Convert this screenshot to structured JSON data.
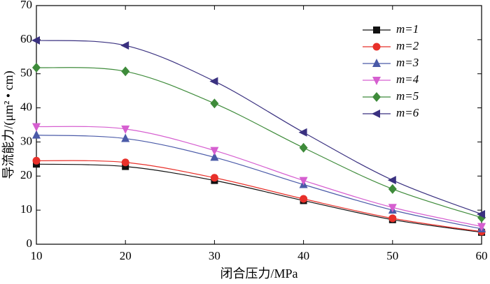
{
  "chart_data": {
    "type": "line",
    "x_label": "闭合压力/MPa",
    "y_label": "导流能力/(μm² • cm)",
    "x": [
      10,
      20,
      30,
      40,
      50,
      60
    ],
    "xlim": [
      10,
      60
    ],
    "xticks": [
      10,
      20,
      30,
      40,
      50,
      60
    ],
    "ylim": [
      0,
      70
    ],
    "yticks": [
      0,
      10,
      20,
      30,
      40,
      50,
      60,
      70
    ],
    "grid": false,
    "legend": "upper right",
    "smooth": true,
    "series": [
      {
        "name": "m=1",
        "color": "#111111",
        "marker": "square",
        "values": [
          23.5,
          22.8,
          18.7,
          12.8,
          7.2,
          3.5
        ]
      },
      {
        "name": "m=2",
        "color": "#e8302a",
        "marker": "circle",
        "values": [
          24.5,
          24.0,
          19.5,
          13.3,
          7.6,
          3.7
        ]
      },
      {
        "name": "m=3",
        "color": "#4a5aa8",
        "marker": "triangle-up",
        "values": [
          32.0,
          31.0,
          25.5,
          17.5,
          10.0,
          4.5
        ]
      },
      {
        "name": "m=4",
        "color": "#d65fd0",
        "marker": "triangle-down",
        "values": [
          34.5,
          33.8,
          27.5,
          18.7,
          10.8,
          5.2
        ]
      },
      {
        "name": "m=5",
        "color": "#3e8b3a",
        "marker": "diamond",
        "values": [
          51.8,
          50.7,
          41.3,
          28.3,
          16.2,
          7.8
        ]
      },
      {
        "name": "m=6",
        "color": "#3a3180",
        "marker": "triangle-left",
        "values": [
          59.8,
          58.3,
          47.8,
          32.8,
          18.8,
          8.8
        ]
      }
    ]
  }
}
